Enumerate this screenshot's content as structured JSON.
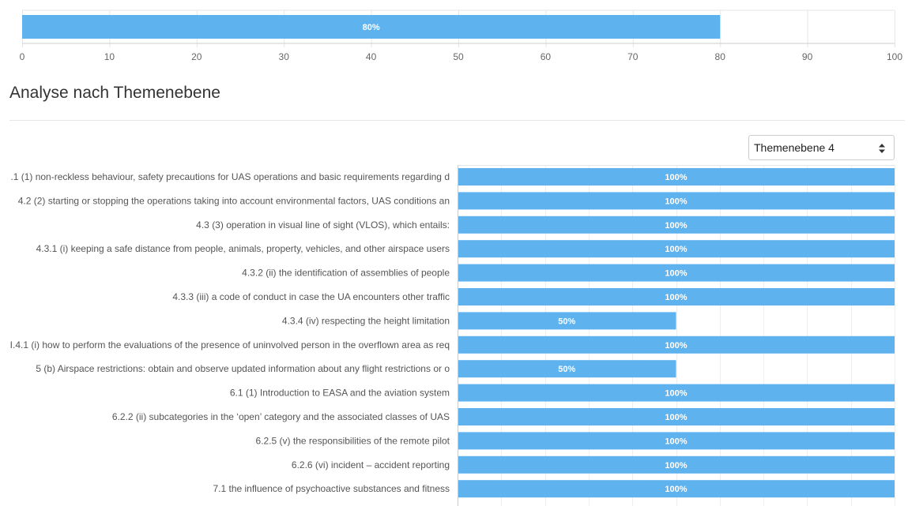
{
  "overall_chart": {
    "type": "bar",
    "orientation": "horizontal",
    "values": [
      80
    ],
    "value_labels": [
      "80%"
    ],
    "xlim": [
      0,
      100
    ],
    "x_ticks": [
      "0",
      "10",
      "20",
      "30",
      "40",
      "50",
      "60",
      "70",
      "80",
      "90",
      "100"
    ],
    "bar_color": "#5eb2ee",
    "grid": true
  },
  "section": {
    "title": "Analyse nach Themenebene"
  },
  "level_select": {
    "selected": "Themenebene 4"
  },
  "chart_data": {
    "type": "bar",
    "orientation": "horizontal",
    "categories": [
      ".1 (1) non-reckless behaviour, safety precautions for UAS operations and basic requirements regarding d",
      "4.2 (2) starting or stopping the operations taking into account environmental factors, UAS conditions an",
      "4.3 (3) operation in visual line of sight (VLOS), which entails:",
      "4.3.1 (i) keeping a safe distance from people, animals, property, vehicles, and other airspace users",
      "4.3.2 (ii) the identification of assemblies of people",
      "4.3.3 (iii) a code of conduct in case the UA encounters other traffic",
      "4.3.4 (iv) respecting the height limitation",
      "I.4.1 (i) how to perform the evaluations of the presence of uninvolved person in the overflown area as req",
      "5 (b) Airspace restrictions: obtain and observe updated information about any flight restrictions or o",
      "6.1 (1) Introduction to EASA and the aviation system",
      "6.2.2 (ii) subcategories in the ‘open’ category and the associated classes of UAS",
      "6.2.5 (v) the responsibilities of the remote pilot",
      "6.2.6 (vi) incident – accident reporting",
      "7.1 the influence of psychoactive substances and fitness"
    ],
    "values": [
      100,
      100,
      100,
      100,
      100,
      100,
      50,
      100,
      50,
      100,
      100,
      100,
      100,
      100
    ],
    "value_labels": [
      "100%",
      "100%",
      "100%",
      "100%",
      "100%",
      "100%",
      "50%",
      "100%",
      "50%",
      "100%",
      "100%",
      "100%",
      "100%",
      "100%"
    ],
    "xlim": [
      0,
      100
    ],
    "bar_color": "#5eb2ee",
    "grid": true
  }
}
